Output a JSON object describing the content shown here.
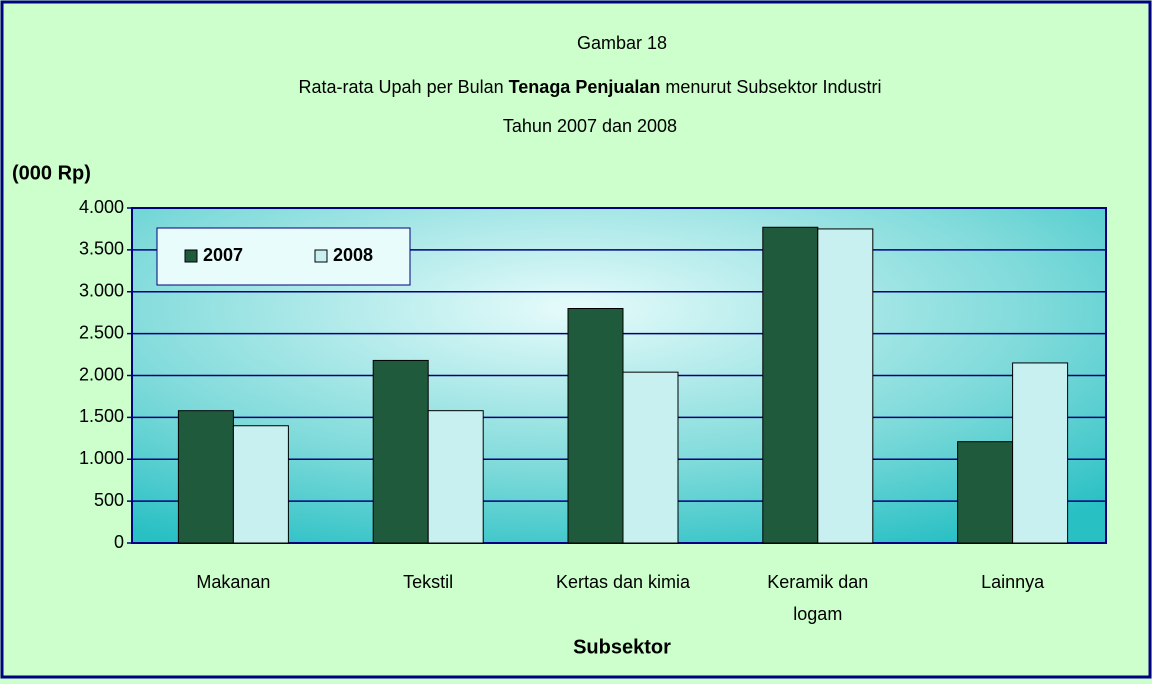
{
  "chart_data": {
    "type": "bar",
    "title": [
      "Gambar 18",
      [
        "Rata-rata Upah per Bulan",
        "Tenaga Penjualan",
        "menurut Subsektor Industri"
      ],
      "Tahun 2007 dan 2008"
    ],
    "y_label": "(000 Rp)",
    "x_label": "Subsektor",
    "categories": [
      "Makanan",
      "Tekstil",
      "Kertas dan kimia",
      "Keramik dan logam",
      "Lainnya"
    ],
    "series": [
      {
        "name": "2007",
        "color": "#1f5a3c",
        "values": [
          1580,
          2180,
          2800,
          3770,
          1210
        ]
      },
      {
        "name": "2008",
        "color": "#c8f0f0",
        "values": [
          1400,
          1580,
          2040,
          3750,
          2150
        ]
      }
    ],
    "ylim": [
      0,
      4000
    ],
    "yticks": [
      0,
      500,
      {
        "value": 1000,
        "label": "1.000"
      },
      {
        "value": 1500,
        "label": "1.500"
      },
      {
        "value": 2000,
        "label": "2.000"
      },
      {
        "value": 2500,
        "label": "2.500"
      },
      {
        "value": 3000,
        "label": "3.000"
      },
      {
        "value": 3500,
        "label": "3.500"
      },
      {
        "value": 4000,
        "label": "4.000"
      }
    ],
    "grid": true,
    "legend": "top-left"
  }
}
